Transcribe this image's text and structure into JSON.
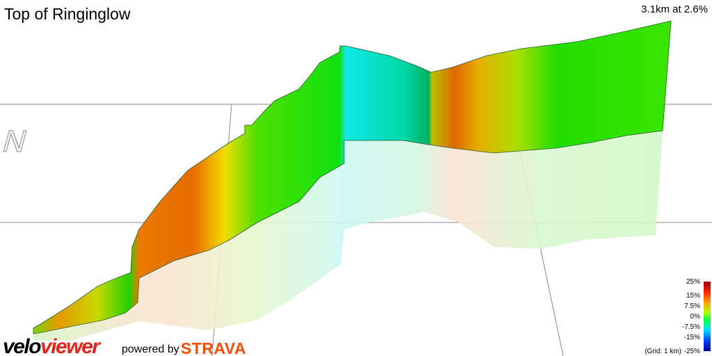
{
  "header": {
    "title": "Top of Ringinglow",
    "summary": "3.1km at 2.6%"
  },
  "compass": "N",
  "legend": {
    "labels": [
      "25%",
      "15%",
      "7.5%",
      "0%",
      "-7.5%",
      "-15%",
      "-25%"
    ],
    "grid_note": "(Grid: 1 km)"
  },
  "footer": {
    "brand_prefix": "velo",
    "brand_suffix": "viewer",
    "powered_by": "powered by",
    "partner": "STRAVA"
  }
}
